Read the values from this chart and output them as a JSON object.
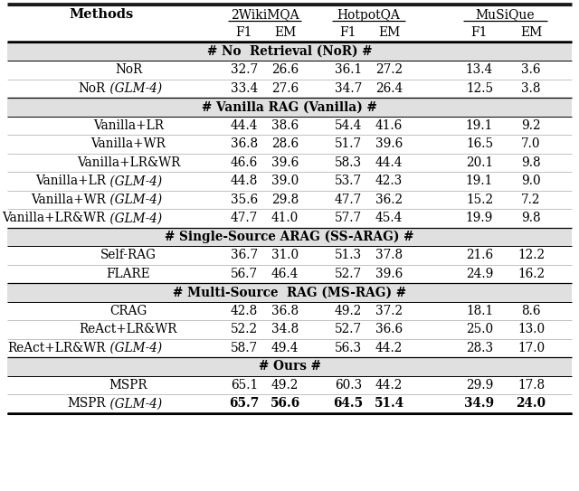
{
  "figsize": [
    6.4,
    5.43
  ],
  "dpi": 100,
  "sections": [
    {
      "label": "# No  Retrieval (NoR) #",
      "rows": [
        {
          "method": "NoR",
          "glm": false,
          "values": [
            "32.7",
            "26.6",
            "36.1",
            "27.2",
            "13.4",
            "3.6"
          ],
          "bold_vals": []
        },
        {
          "method": "NoR",
          "glm": true,
          "values": [
            "33.4",
            "27.6",
            "34.7",
            "26.4",
            "12.5",
            "3.8"
          ],
          "bold_vals": []
        }
      ]
    },
    {
      "label": "# Vanilla RAG (Vanilla) #",
      "rows": [
        {
          "method": "Vanilla+LR",
          "glm": false,
          "values": [
            "44.4",
            "38.6",
            "54.4",
            "41.6",
            "19.1",
            "9.2"
          ],
          "bold_vals": []
        },
        {
          "method": "Vanilla+WR",
          "glm": false,
          "values": [
            "36.8",
            "28.6",
            "51.7",
            "39.6",
            "16.5",
            "7.0"
          ],
          "bold_vals": []
        },
        {
          "method": "Vanilla+LR&WR",
          "glm": false,
          "values": [
            "46.6",
            "39.6",
            "58.3",
            "44.4",
            "20.1",
            "9.8"
          ],
          "bold_vals": []
        },
        {
          "method": "Vanilla+LR",
          "glm": true,
          "values": [
            "44.8",
            "39.0",
            "53.7",
            "42.3",
            "19.1",
            "9.0"
          ],
          "bold_vals": []
        },
        {
          "method": "Vanilla+WR",
          "glm": true,
          "values": [
            "35.6",
            "29.8",
            "47.7",
            "36.2",
            "15.2",
            "7.2"
          ],
          "bold_vals": []
        },
        {
          "method": "Vanilla+LR&WR",
          "glm": true,
          "values": [
            "47.7",
            "41.0",
            "57.7",
            "45.4",
            "19.9",
            "9.8"
          ],
          "bold_vals": []
        }
      ]
    },
    {
      "label": "# Single-Source ARAG (SS-ARAG) #",
      "rows": [
        {
          "method": "Self-RAG",
          "glm": false,
          "values": [
            "36.7",
            "31.0",
            "51.3",
            "37.8",
            "21.6",
            "12.2"
          ],
          "bold_vals": []
        },
        {
          "method": "FLARE",
          "glm": false,
          "values": [
            "56.7",
            "46.4",
            "52.7",
            "39.6",
            "24.9",
            "16.2"
          ],
          "bold_vals": []
        }
      ]
    },
    {
      "label": "# Multi-Source  RAG (MS-RAG) #",
      "rows": [
        {
          "method": "CRAG",
          "glm": false,
          "values": [
            "42.8",
            "36.8",
            "49.2",
            "37.2",
            "18.1",
            "8.6"
          ],
          "bold_vals": []
        },
        {
          "method": "ReAct+LR&WR",
          "glm": false,
          "values": [
            "52.2",
            "34.8",
            "52.7",
            "36.6",
            "25.0",
            "13.0"
          ],
          "bold_vals": []
        },
        {
          "method": "ReAct+LR&WR",
          "glm": true,
          "values": [
            "58.7",
            "49.4",
            "56.3",
            "44.2",
            "28.3",
            "17.0"
          ],
          "bold_vals": []
        }
      ]
    },
    {
      "label": "# Ours #",
      "rows": [
        {
          "method": "MSPR",
          "glm": false,
          "values": [
            "65.1",
            "49.2",
            "60.3",
            "44.2",
            "29.9",
            "17.8"
          ],
          "bold_vals": []
        },
        {
          "method": "MSPR",
          "glm": true,
          "values": [
            "65.7",
            "56.6",
            "64.5",
            "51.4",
            "34.9",
            "24.0"
          ],
          "bold_vals": [
            0,
            1,
            2,
            3,
            4,
            5
          ]
        }
      ]
    }
  ],
  "col_groups": [
    {
      "label": "2WikiMQA",
      "cols": [
        0,
        1
      ]
    },
    {
      "label": "HotpotQA",
      "cols": [
        2,
        3
      ]
    },
    {
      "label": "MuSiQue",
      "cols": [
        4,
        5
      ]
    }
  ],
  "section_bg": "#e0e0e0",
  "white_bg": "#ffffff"
}
